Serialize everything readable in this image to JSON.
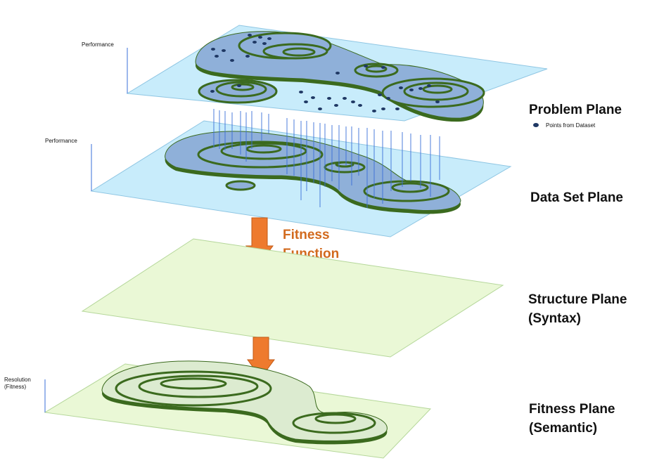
{
  "axes": {
    "problem_y": "Performance",
    "dataset_y": "Performance",
    "fitness_y_line1": "Resolution",
    "fitness_y_line2": "(Fitness)"
  },
  "legend": {
    "points_label": "Points from Dataset"
  },
  "arrow_label": {
    "line1": "Fitness",
    "line2": "Function"
  },
  "planes": {
    "problem": {
      "label": "Problem Plane"
    },
    "dataset": {
      "label": "Data Set Plane"
    },
    "structure": {
      "line1": "Structure Plane",
      "line2": "(Syntax)"
    },
    "fitness": {
      "line1": "Fitness Plane",
      "line2": "(Semantic)"
    }
  },
  "colors": {
    "blue_plane": "#c8ecfb",
    "green_plane": "#eaf8d6",
    "contour_blue": "#8fb0d9",
    "contour_green": "#dcebd0",
    "contour_edge": "#3b6a1e",
    "arrow": "#ee7a2e",
    "point": "#1f3864",
    "projection_line": "#3a6fd8"
  }
}
